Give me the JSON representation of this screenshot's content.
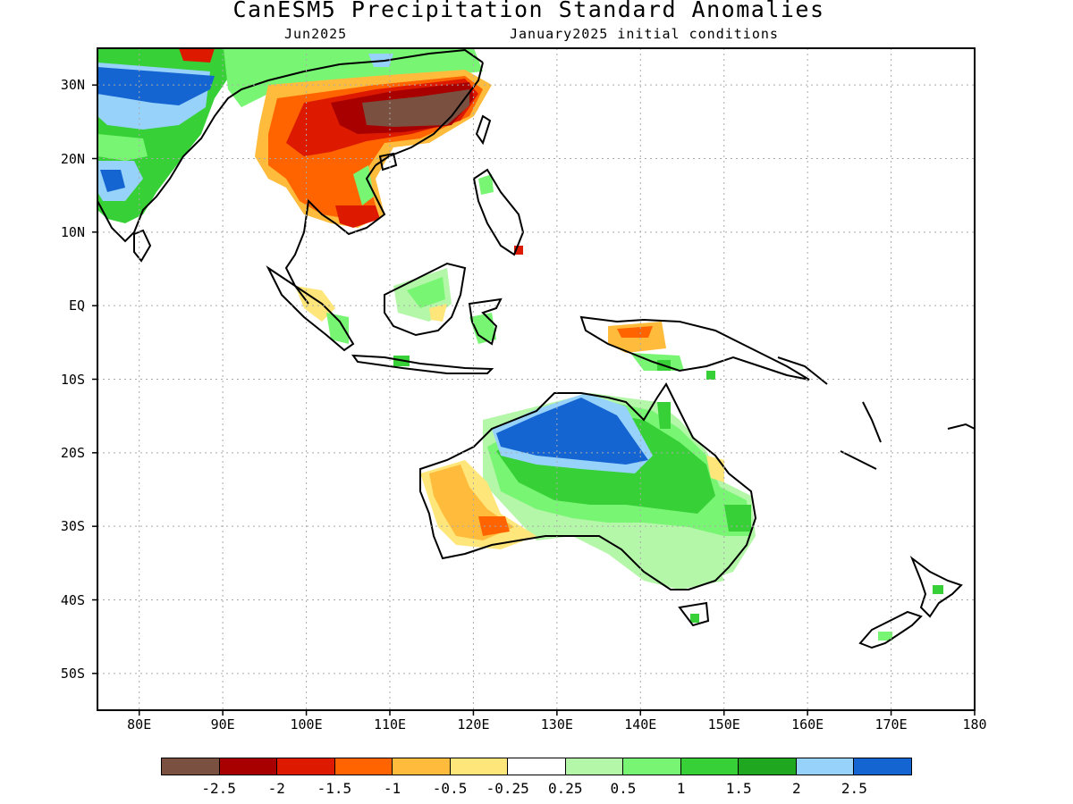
{
  "title": "CanESM5 Precipitation Standard Anomalies",
  "subtitle_left": "Jun2025",
  "subtitle_right": "January2025 initial conditions",
  "lat_labels": [
    "30N",
    "20N",
    "10N",
    "EQ",
    "10S",
    "20S",
    "30S",
    "40S",
    "50S"
  ],
  "lon_labels": [
    "80E",
    "90E",
    "100E",
    "110E",
    "120E",
    "130E",
    "140E",
    "150E",
    "160E",
    "170E",
    "180"
  ],
  "colorbar": {
    "labels": [
      "-2.5",
      "-2",
      "-1.5",
      "-1",
      "-0.5",
      "-0.25",
      "0.25",
      "0.5",
      "1",
      "1.5",
      "2",
      "2.5"
    ],
    "colors": [
      "#7a5040",
      "#a80000",
      "#dd1a00",
      "#ff6400",
      "#ffbb3b",
      "#ffe67a",
      "#ffffff",
      "#b4f7a8",
      "#78f573",
      "#37d037",
      "#1fa81f",
      "#96d2fa",
      "#1464d2"
    ]
  },
  "map": {
    "region": "Indo-Pacific / Maritime Continent / Australia",
    "lon_range": [
      75,
      180
    ],
    "lat_range": [
      -55,
      35
    ],
    "grid": true,
    "highlights": {
      "negative_anomaly_regions": [
        "Southern China",
        "Indochina",
        "Western Australia"
      ],
      "positive_anomaly_regions": [
        "Northern India / Bay of Bengal",
        "Northern Australia",
        "Eastern Australia",
        "New Zealand"
      ]
    }
  }
}
